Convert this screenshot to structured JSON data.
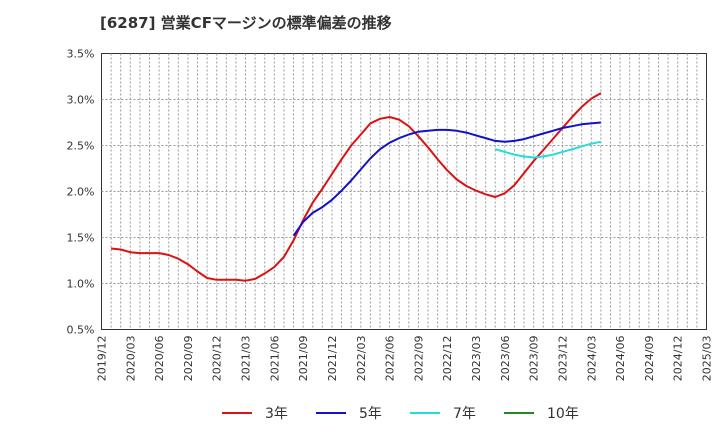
{
  "chart_data": {
    "type": "line",
    "title": "[6287]  営業CFマージンの標準偏差の推移",
    "ylim": [
      0.005,
      0.035
    ],
    "y_ticks": [
      "0.5%",
      "1.0%",
      "1.5%",
      "2.0%",
      "2.5%",
      "3.0%",
      "3.5%"
    ],
    "x_ticks": [
      "2019/12",
      "2020/03",
      "2020/06",
      "2020/09",
      "2020/12",
      "2021/03",
      "2021/06",
      "2021/09",
      "2021/12",
      "2022/03",
      "2022/06",
      "2022/09",
      "2022/12",
      "2023/03",
      "2023/06",
      "2023/09",
      "2023/12",
      "2024/03",
      "2024/06",
      "2024/09",
      "2024/12",
      "2025/03"
    ],
    "grid": true,
    "legend_position": "bottom",
    "series": [
      {
        "name": "3年",
        "color": "#dd1111",
        "values": [
          0.0138,
          0.0137,
          0.0134,
          0.0133,
          0.0133,
          0.0133,
          0.0131,
          0.0127,
          0.0121,
          0.0113,
          0.0106,
          0.0104,
          0.0104,
          0.0104,
          0.0103,
          0.0105,
          0.0111,
          0.0118,
          0.0129,
          0.0147,
          0.0169,
          0.0188,
          0.0203,
          0.0219,
          0.0235,
          0.025,
          0.0262,
          0.0274,
          0.0279,
          0.0281,
          0.0278,
          0.0271,
          0.026,
          0.0248,
          0.0235,
          0.0223,
          0.0213,
          0.0206,
          0.0201,
          0.0197,
          0.0194,
          0.0198,
          0.0207,
          0.022,
          0.0233,
          0.0245,
          0.0257,
          0.0269,
          0.0281,
          0.0292,
          0.0301,
          0.0307
        ]
      },
      {
        "name": "5年",
        "color": "#1111cc",
        "values": [
          null,
          null,
          null,
          null,
          null,
          null,
          null,
          null,
          null,
          null,
          null,
          null,
          null,
          null,
          null,
          null,
          null,
          null,
          null,
          0.0152,
          0.0167,
          0.0177,
          0.0183,
          0.0191,
          0.0201,
          0.0212,
          0.0224,
          0.0236,
          0.0246,
          0.0253,
          0.0258,
          0.0262,
          0.0265,
          0.0266,
          0.0267,
          0.0267,
          0.0266,
          0.0264,
          0.0261,
          0.0258,
          0.0255,
          0.0254,
          0.0255,
          0.0257,
          0.026,
          0.0263,
          0.0266,
          0.0269,
          0.0271,
          0.0273,
          0.0274,
          0.0275
        ]
      },
      {
        "name": "7年",
        "color": "#22dddd",
        "values": [
          null,
          null,
          null,
          null,
          null,
          null,
          null,
          null,
          null,
          null,
          null,
          null,
          null,
          null,
          null,
          null,
          null,
          null,
          null,
          null,
          null,
          null,
          null,
          null,
          null,
          null,
          null,
          null,
          null,
          null,
          null,
          null,
          null,
          null,
          null,
          null,
          null,
          null,
          null,
          null,
          0.0246,
          0.0243,
          0.024,
          0.0238,
          0.0237,
          0.0238,
          0.024,
          0.0243,
          0.0246,
          0.0249,
          0.0252,
          0.0254
        ]
      },
      {
        "name": "10年",
        "color": "#228822",
        "values": []
      }
    ]
  }
}
